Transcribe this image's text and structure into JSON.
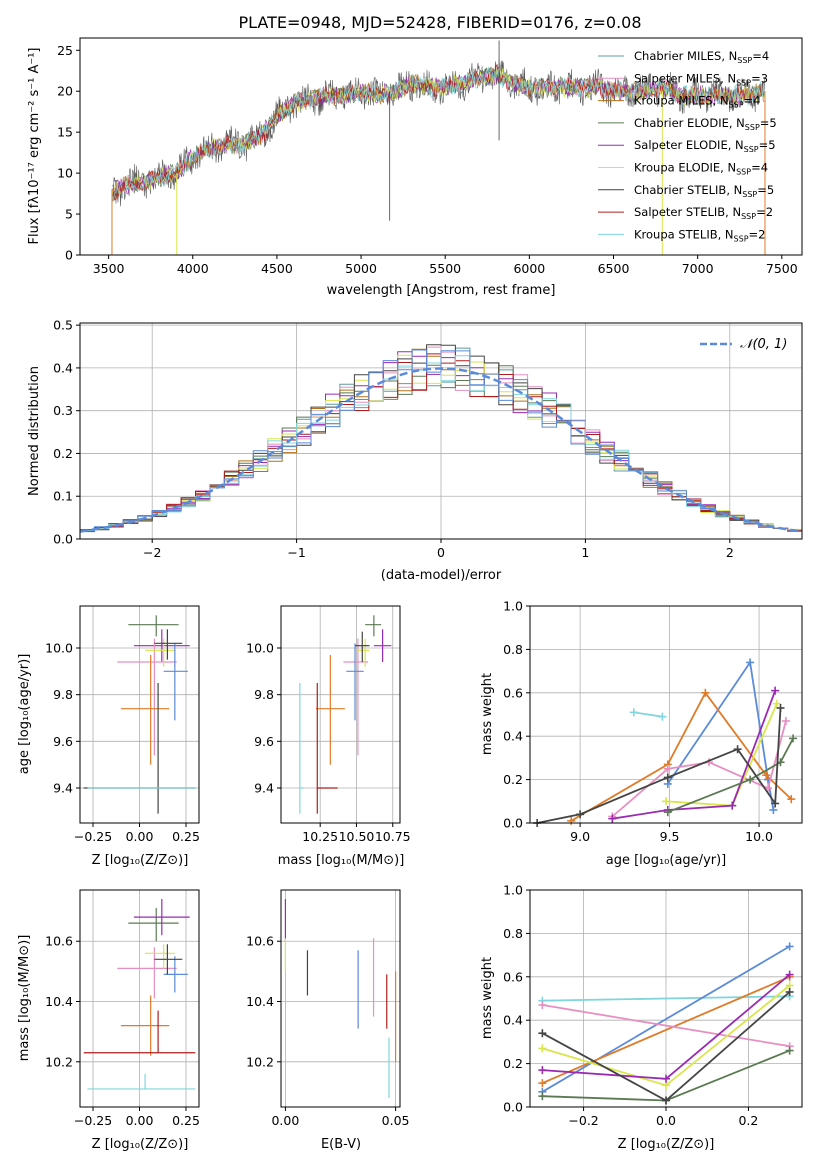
{
  "palette": [
    "#5b7a53",
    "#9b2ab3",
    "#b0721c",
    "#5b7a53",
    "#9b2ab3",
    "#d9e64a",
    "#444444",
    "#b01c1c",
    "#80d6dc"
  ],
  "chart_data": [
    {
      "type": "line",
      "title": "PLATE=0948, MJD=52428, FIBERID=0176, z=0.08",
      "xlabel": "wavelength [Angstrom, rest frame]",
      "ylabel": "Flux [fλ10⁻¹⁷ erg cm⁻² s⁻¹ A⁻¹]",
      "xlim": [
        3330,
        7620
      ],
      "ylim": [
        0,
        26.5
      ],
      "xticks": [
        "3500",
        "4000",
        "4500",
        "5000",
        "5500",
        "6000",
        "6500",
        "7000",
        "7500"
      ],
      "yticks": [
        "0",
        "5",
        "10",
        "15",
        "20",
        "25"
      ],
      "grid": false,
      "legend_position": "upper right",
      "legend": [
        {
          "label": "Chabrier MILES, N",
          "sub": "SSP",
          "suffix": "=4",
          "color": "#5d9ca4"
        },
        {
          "label": "Salpeter MILES, N",
          "sub": "SSP",
          "suffix": "=3",
          "color": "#e88fc2"
        },
        {
          "label": "Kroupa MILES, N",
          "sub": "SSP",
          "suffix": "=4",
          "color": "#b0721c"
        },
        {
          "label": "Chabrier ELODIE, N",
          "sub": "SSP",
          "suffix": "=5",
          "color": "#5b7a53"
        },
        {
          "label": "Salpeter ELODIE, N",
          "sub": "SSP",
          "suffix": "=5",
          "color": "#9b2ab3"
        },
        {
          "label": "Kroupa ELODIE, N",
          "sub": "SSP",
          "suffix": "=4",
          "color": "#d9e64a"
        },
        {
          "label": "Chabrier STELIB, N",
          "sub": "SSP",
          "suffix": "=5",
          "color": "#444444"
        },
        {
          "label": "Salpeter STELIB, N",
          "sub": "SSP",
          "suffix": "=2",
          "color": "#b01c1c"
        },
        {
          "label": "Kroupa STELIB, N",
          "sub": "SSP",
          "suffix": "=2",
          "color": "#80d6dc"
        }
      ],
      "spectrum_anchors": {
        "x": [
          3520,
          3600,
          3700,
          3800,
          3900,
          4000,
          4100,
          4200,
          4300,
          4400,
          4500,
          4600,
          4700,
          4800,
          4900,
          5000,
          5100,
          5200,
          5300,
          5400,
          5500,
          5600,
          5700,
          5800,
          5900,
          6000,
          6100,
          6200,
          6300,
          6400,
          6500,
          6600,
          6700,
          6800,
          6900,
          7000,
          7100,
          7200,
          7300,
          7400
        ],
        "y": [
          7.5,
          8.5,
          9,
          9.5,
          10,
          12,
          13,
          13.5,
          13.5,
          14.5,
          17,
          18.5,
          19,
          19.5,
          19.5,
          20,
          19.5,
          20,
          21,
          20.5,
          20.5,
          21,
          21.5,
          22,
          21,
          20.5,
          20.5,
          20.5,
          20.5,
          20.5,
          20,
          20,
          20,
          20.5,
          19.5,
          19.5,
          19.5,
          19.5,
          19.5,
          20
        ]
      }
    },
    {
      "type": "histogram",
      "xlabel": "(data-model)/error",
      "ylabel": "Normed distribution",
      "xlim": [
        -2.5,
        2.5
      ],
      "ylim": [
        0,
        0.505
      ],
      "xticks": [
        "−2",
        "−1",
        "0",
        "1",
        "2"
      ],
      "yticks": [
        "0.0",
        "0.1",
        "0.2",
        "0.3",
        "0.4",
        "0.5"
      ],
      "grid": true,
      "legend": [
        {
          "label": "𝒩(0, 1)",
          "color": "#5b8bd9",
          "style": "dashed"
        }
      ],
      "series_colors": [
        "#5d9ca4",
        "#e88fc2",
        "#b0721c",
        "#5b7a53",
        "#9b2ab3",
        "#d9e64a",
        "#444444",
        "#b01c1c",
        "#80d6dc",
        "#5b8bd9"
      ]
    },
    {
      "type": "scatter",
      "xlabel": "Z [log₁₀(Z/Z⊙)]",
      "ylabel": "age  [log₁₀(age/yr)]",
      "xlim": [
        -0.32,
        0.32
      ],
      "ylim": [
        9.25,
        10.18
      ],
      "xticks": [
        "−0.25",
        "0.00",
        "0.25"
      ],
      "yticks": [
        "9.4",
        "9.6",
        "9.8",
        "10.0"
      ],
      "series": [
        {
          "x": 0.09,
          "y": 10.1,
          "xerr": [
            0.15,
            0.12
          ],
          "yerr": [
            0.05,
            0.04
          ],
          "color": "#5b7a53"
        },
        {
          "x": 0.12,
          "y": 10.01,
          "xerr": [
            0.15,
            0.15
          ],
          "yerr": [
            0.07,
            0.07
          ],
          "color": "#9b2ab3"
        },
        {
          "x": 0.08,
          "y": 9.94,
          "xerr": [
            0.2,
            0.12
          ],
          "yerr": [
            0.4,
            0.1
          ],
          "color": "#e88fc2"
        },
        {
          "x": 0.13,
          "y": 9.99,
          "xerr": [
            0.1,
            0.06
          ],
          "yerr": [
            0.07,
            0.05
          ],
          "color": "#d9e64a"
        },
        {
          "x": 0.19,
          "y": 9.9,
          "xerr": [
            0.06,
            0.07
          ],
          "yerr": [
            0.21,
            0.12
          ],
          "color": "#5b8bd9"
        },
        {
          "x": 0.06,
          "y": 9.74,
          "xerr": [
            0.16,
            0.1
          ],
          "yerr": [
            0.24,
            0.23
          ],
          "color": "#e07b28"
        },
        {
          "x": 0.1,
          "y": 9.4,
          "xerr": [
            0.4,
            0.2
          ],
          "yerr": [
            0.11,
            0.45
          ],
          "color": "#444444"
        },
        {
          "x": 0.03,
          "y": 9.4,
          "xerr": [
            0.31,
            0.27
          ],
          "yerr": [
            0.0,
            0.0
          ],
          "color": "#80d6dc"
        },
        {
          "x": 0.15,
          "y": 10.02,
          "xerr": [
            0.07,
            0.08
          ],
          "yerr": [
            0.07,
            0.06
          ],
          "color": "#444444"
        }
      ]
    },
    {
      "type": "scatter",
      "xlabel": "mass [log₁₀(M/M⊙)]",
      "ylabel": "",
      "xlim": [
        9.98,
        10.8
      ],
      "ylim": [
        9.25,
        10.18
      ],
      "xticks": [
        "10.25",
        "10.50",
        "10.75"
      ],
      "yticks": [
        "9.4",
        "9.6",
        "9.8",
        "10.0"
      ],
      "series": [
        {
          "x": 10.62,
          "y": 10.1,
          "xerr": [
            0.06,
            0.05
          ],
          "yerr": [
            0.05,
            0.04
          ],
          "color": "#5b7a53"
        },
        {
          "x": 10.68,
          "y": 10.01,
          "xerr": [
            0.06,
            0.06
          ],
          "yerr": [
            0.07,
            0.07
          ],
          "color": "#9b2ab3"
        },
        {
          "x": 10.51,
          "y": 9.94,
          "xerr": [
            0.1,
            0.07
          ],
          "yerr": [
            0.4,
            0.1
          ],
          "color": "#e88fc2"
        },
        {
          "x": 10.56,
          "y": 9.99,
          "xerr": [
            0.05,
            0.03
          ],
          "yerr": [
            0.07,
            0.05
          ],
          "color": "#d9e64a"
        },
        {
          "x": 10.49,
          "y": 9.9,
          "xerr": [
            0.06,
            0.06
          ],
          "yerr": [
            0.21,
            0.12
          ],
          "color": "#5b8bd9"
        },
        {
          "x": 10.32,
          "y": 9.74,
          "xerr": [
            0.1,
            0.1
          ],
          "yerr": [
            0.24,
            0.23
          ],
          "color": "#e07b28"
        },
        {
          "x": 10.23,
          "y": 9.4,
          "xerr": [
            0.0,
            0.14
          ],
          "yerr": [
            0.11,
            0.45
          ],
          "color": "#b01c1c"
        },
        {
          "x": 10.11,
          "y": 9.4,
          "xerr": [
            0.0,
            0.03
          ],
          "yerr": [
            0.11,
            0.45
          ],
          "color": "#80d6dc"
        },
        {
          "x": 10.54,
          "y": 10.01,
          "xerr": [
            0.05,
            0.05
          ],
          "yerr": [
            0.07,
            0.06
          ],
          "color": "#444444"
        }
      ]
    },
    {
      "type": "line",
      "xlabel": "age  [log₁₀(age/yr)]",
      "ylabel": "mass weight",
      "xlim": [
        8.72,
        10.24
      ],
      "ylim": [
        0,
        1.0
      ],
      "xticks": [
        "9.0",
        "9.5",
        "10.0"
      ],
      "yticks": [
        "0.0",
        "0.2",
        "0.4",
        "0.6",
        "0.8",
        "1.0"
      ],
      "grid": true,
      "series": [
        {
          "x": [
            9.3,
            9.46
          ],
          "y": [
            0.51,
            0.49
          ],
          "color": "#80d6dc"
        },
        {
          "x": [
            9.49,
            9.95,
            10.05,
            10.08
          ],
          "y": [
            0.18,
            0.74,
            0.2,
            0.06
          ],
          "color": "#5b8bd9"
        },
        {
          "x": [
            8.95,
            9.49,
            9.7,
            10.04,
            10.18
          ],
          "y": [
            0.01,
            0.27,
            0.6,
            0.22,
            0.11
          ],
          "color": "#e07b28"
        },
        {
          "x": [
            9.18,
            9.49,
            9.72,
            10.05,
            10.15
          ],
          "y": [
            0.03,
            0.25,
            0.28,
            0.16,
            0.47
          ],
          "color": "#e88fc2"
        },
        {
          "x": [
            9.48,
            9.85,
            10.1
          ],
          "y": [
            0.1,
            0.08,
            0.55
          ],
          "color": "#d9e64a"
        },
        {
          "x": [
            9.18,
            9.49,
            9.85,
            10.09
          ],
          "y": [
            0.02,
            0.06,
            0.08,
            0.61
          ],
          "color": "#9b2ab3"
        },
        {
          "x": [
            9.49,
            9.95,
            10.12,
            10.19
          ],
          "y": [
            0.05,
            0.2,
            0.28,
            0.39
          ],
          "color": "#5b7a53"
        },
        {
          "x": [
            8.76,
            9.0,
            9.49,
            9.88,
            10.09,
            10.12
          ],
          "y": [
            0.0,
            0.04,
            0.21,
            0.34,
            0.09,
            0.53
          ],
          "color": "#444444"
        }
      ]
    },
    {
      "type": "scatter",
      "xlabel": "Z [log₁₀(Z/Z⊙)]",
      "ylabel": "mass [log₁₀(M/M⊙)]",
      "xlim": [
        -0.32,
        0.32
      ],
      "ylim": [
        10.05,
        10.77
      ],
      "xticks": [
        "−0.25",
        "0.00",
        "0.25"
      ],
      "yticks": [
        "10.2",
        "10.4",
        "10.6"
      ],
      "series": [
        {
          "x": 0.09,
          "y": 10.66,
          "xerr": [
            0.15,
            0.12
          ],
          "yerr": [
            0.06,
            0.05
          ],
          "color": "#5b7a53"
        },
        {
          "x": 0.12,
          "y": 10.68,
          "xerr": [
            0.15,
            0.15
          ],
          "yerr": [
            0.06,
            0.06
          ],
          "color": "#9b2ab3"
        },
        {
          "x": 0.08,
          "y": 10.51,
          "xerr": [
            0.2,
            0.12
          ],
          "yerr": [
            0.1,
            0.07
          ],
          "color": "#e88fc2"
        },
        {
          "x": 0.13,
          "y": 10.56,
          "xerr": [
            0.1,
            0.06
          ],
          "yerr": [
            0.05,
            0.03
          ],
          "color": "#d9e64a"
        },
        {
          "x": 0.19,
          "y": 10.49,
          "xerr": [
            0.06,
            0.07
          ],
          "yerr": [
            0.06,
            0.06
          ],
          "color": "#5b8bd9"
        },
        {
          "x": 0.06,
          "y": 10.32,
          "xerr": [
            0.16,
            0.1
          ],
          "yerr": [
            0.1,
            0.1
          ],
          "color": "#e07b28"
        },
        {
          "x": 0.1,
          "y": 10.23,
          "xerr": [
            0.4,
            0.2
          ],
          "yerr": [
            0.0,
            0.14
          ],
          "color": "#b01c1c"
        },
        {
          "x": 0.03,
          "y": 10.11,
          "xerr": [
            0.31,
            0.27
          ],
          "yerr": [
            0.0,
            0.05
          ],
          "color": "#80d6dc"
        },
        {
          "x": 0.15,
          "y": 10.54,
          "xerr": [
            0.07,
            0.08
          ],
          "yerr": [
            0.05,
            0.05
          ],
          "color": "#444444"
        }
      ]
    },
    {
      "type": "scatter",
      "xlabel": "E(B-V)",
      "ylabel": "",
      "xlim": [
        -0.002,
        0.052
      ],
      "ylim": [
        10.05,
        10.77
      ],
      "xticks": [
        "0.00",
        "0.05"
      ],
      "yticks": [
        "10.2",
        "10.4",
        "10.6"
      ],
      "series": [
        {
          "x": 0.0,
          "y": 10.66,
          "xerr": [
            0,
            0
          ],
          "yerr": [
            0.06,
            0.08
          ],
          "color": "#9b2ab3"
        },
        {
          "x": 0.0,
          "y": 10.56,
          "xerr": [
            0,
            0
          ],
          "yerr": [
            0.06,
            0.05
          ],
          "color": "#d9e64a"
        },
        {
          "x": 0.01,
          "y": 10.5,
          "xerr": [
            0,
            0
          ],
          "yerr": [
            0.08,
            0.07
          ],
          "color": "#444444"
        },
        {
          "x": 0.033,
          "y": 10.44,
          "xerr": [
            0,
            0
          ],
          "yerr": [
            0.13,
            0.13
          ],
          "color": "#5b8bd9"
        },
        {
          "x": 0.04,
          "y": 10.48,
          "xerr": [
            0,
            0
          ],
          "yerr": [
            0.13,
            0.13
          ],
          "color": "#e88fc2"
        },
        {
          "x": 0.046,
          "y": 10.4,
          "xerr": [
            0,
            0
          ],
          "yerr": [
            0.09,
            0.09
          ],
          "color": "#b01c1c"
        },
        {
          "x": 0.047,
          "y": 10.17,
          "xerr": [
            0,
            0
          ],
          "yerr": [
            0.09,
            0.11
          ],
          "color": "#80d6dc"
        },
        {
          "x": 0.05,
          "y": 10.35,
          "xerr": [
            0,
            0
          ],
          "yerr": [
            0.15,
            0.15
          ],
          "color": "#e07b28"
        }
      ]
    },
    {
      "type": "line",
      "xlabel": "Z [log₁₀(Z/Z⊙)]",
      "ylabel": "mass weight",
      "xlim": [
        -0.33,
        0.33
      ],
      "ylim": [
        0,
        1.0
      ],
      "xticks": [
        "−0.2",
        "0.0",
        "0.2"
      ],
      "yticks": [
        "0.0",
        "0.2",
        "0.4",
        "0.6",
        "0.8",
        "1.0"
      ],
      "grid": true,
      "series": [
        {
          "x": [
            -0.3,
            0.3
          ],
          "y": [
            0.49,
            0.51
          ],
          "color": "#80d6dc"
        },
        {
          "x": [
            -0.3,
            0.3
          ],
          "y": [
            0.07,
            0.74
          ],
          "color": "#5b8bd9"
        },
        {
          "x": [
            -0.3,
            0.3
          ],
          "y": [
            0.11,
            0.6
          ],
          "color": "#e07b28"
        },
        {
          "x": [
            -0.3,
            0.3
          ],
          "y": [
            0.47,
            0.28
          ],
          "color": "#e88fc2"
        },
        {
          "x": [
            -0.3,
            0.0,
            0.3
          ],
          "y": [
            0.27,
            0.1,
            0.56
          ],
          "color": "#d9e64a"
        },
        {
          "x": [
            -0.3,
            0.0,
            0.3
          ],
          "y": [
            0.17,
            0.13,
            0.61
          ],
          "color": "#9b2ab3"
        },
        {
          "x": [
            -0.3,
            0.0,
            0.3
          ],
          "y": [
            0.05,
            0.03,
            0.26
          ],
          "color": "#5b7a53"
        },
        {
          "x": [
            -0.3,
            0.0,
            0.3
          ],
          "y": [
            0.34,
            0.03,
            0.53
          ],
          "color": "#444444"
        }
      ]
    }
  ]
}
